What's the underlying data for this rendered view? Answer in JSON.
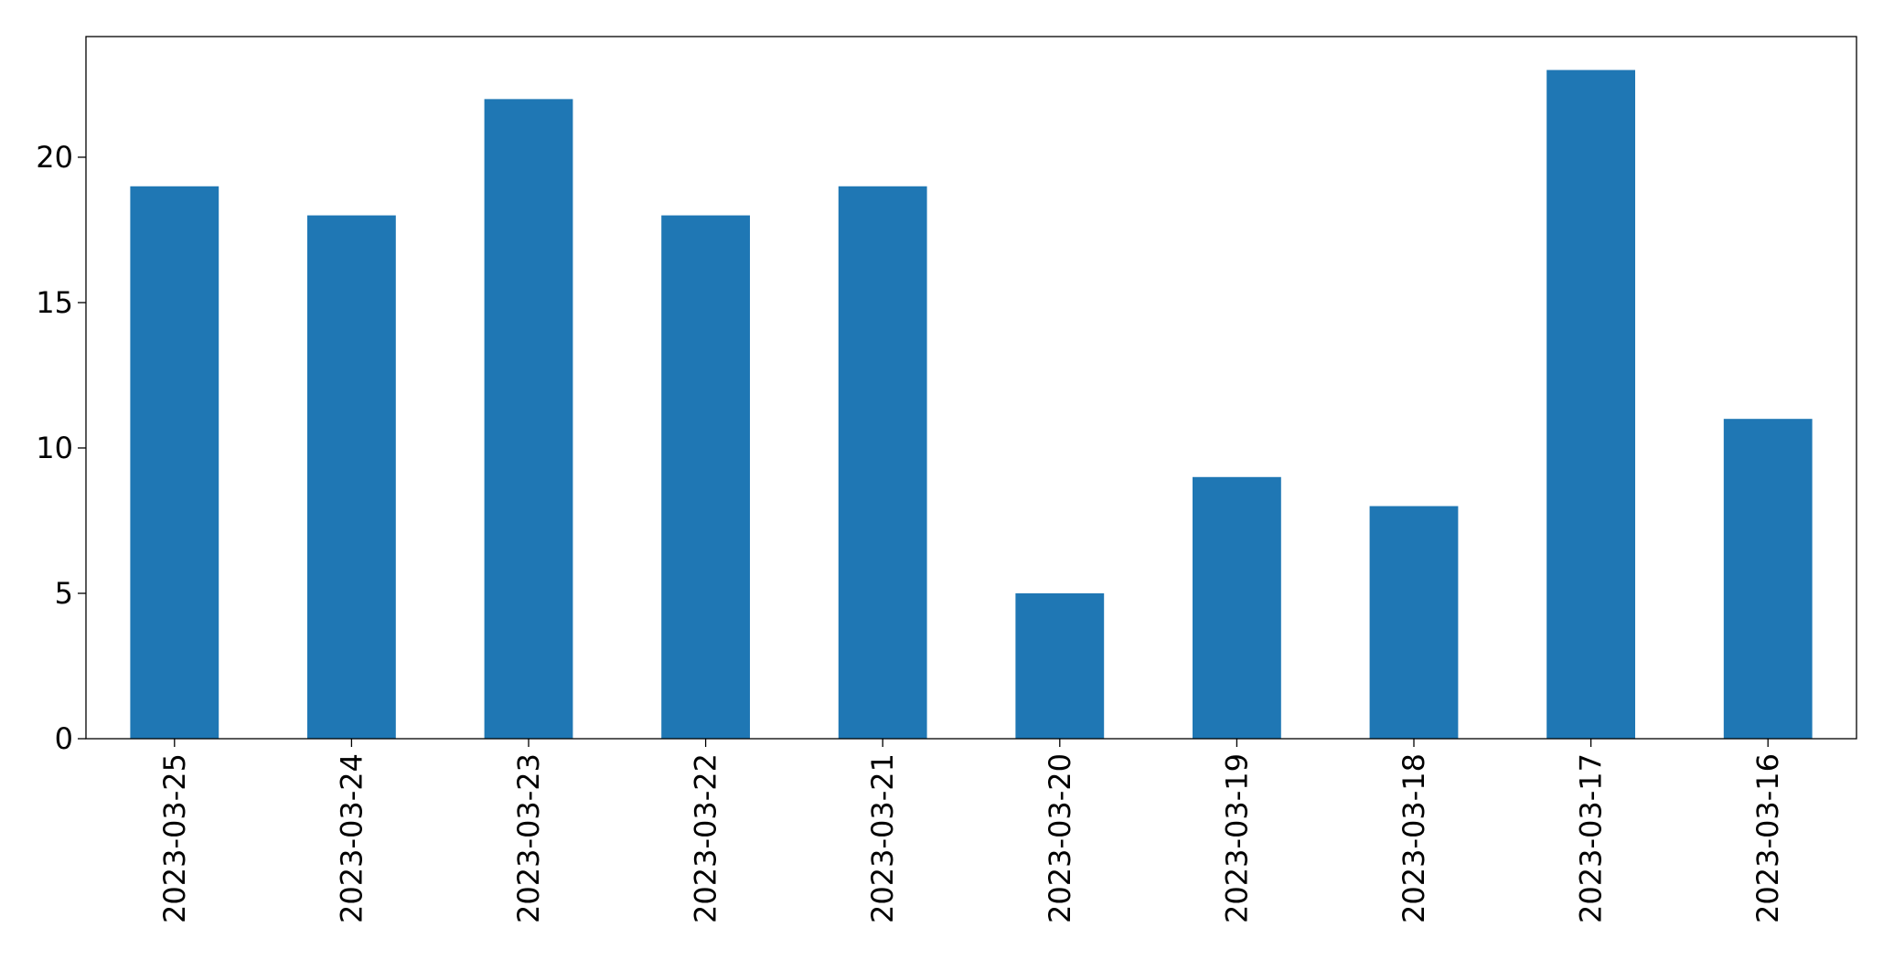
{
  "chart_data": {
    "type": "bar",
    "categories": [
      "2023-03-25",
      "2023-03-24",
      "2023-03-23",
      "2023-03-22",
      "2023-03-21",
      "2023-03-20",
      "2023-03-19",
      "2023-03-18",
      "2023-03-17",
      "2023-03-16"
    ],
    "values": [
      19,
      18,
      22,
      18,
      19,
      5,
      9,
      8,
      23,
      11
    ],
    "color": "#1f77b4",
    "ylim": [
      0,
      24.15
    ],
    "yticks": [
      0,
      5,
      10,
      15,
      20
    ],
    "grid": false
  }
}
